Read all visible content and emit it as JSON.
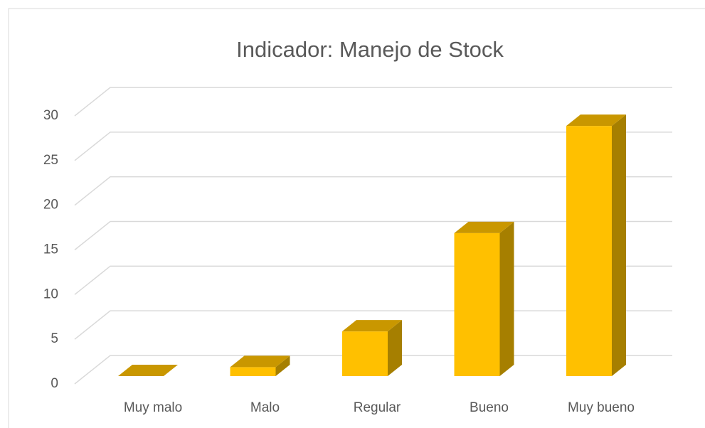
{
  "chart_data": {
    "type": "bar3d",
    "title": "Indicador: Manejo de Stock",
    "categories": [
      "Muy malo",
      "Malo",
      "Regular",
      "Bueno",
      "Muy bueno"
    ],
    "values": [
      0,
      1,
      5,
      16,
      28
    ],
    "color": "#FFC000",
    "ylim": [
      0,
      30
    ],
    "yticks": [
      0,
      5,
      10,
      15,
      20,
      25,
      30
    ],
    "grid": true
  }
}
